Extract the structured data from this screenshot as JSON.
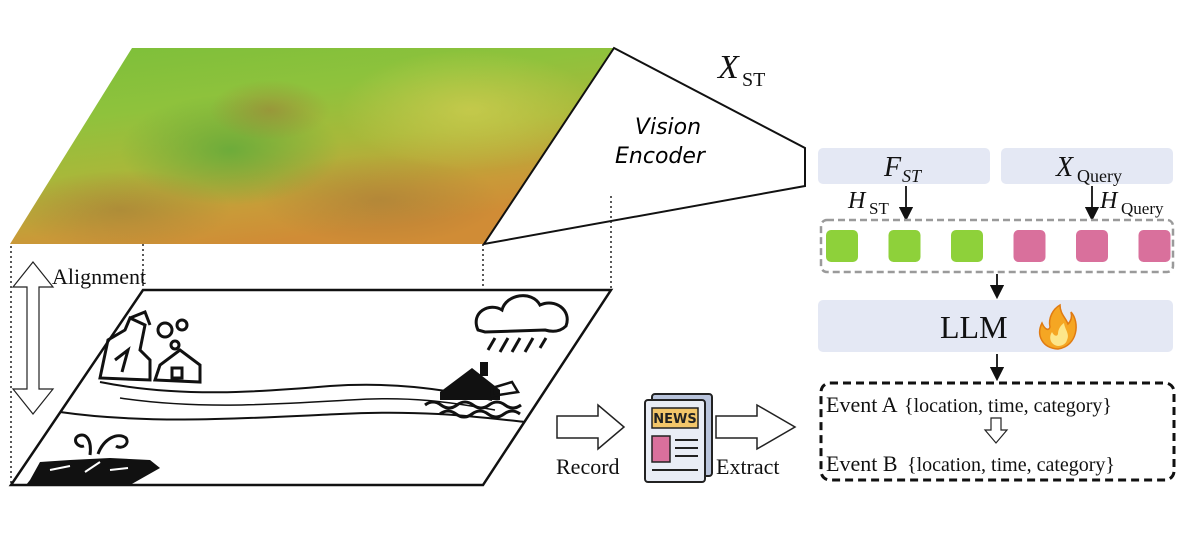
{
  "labels": {
    "x_st": "X",
    "x_st_sub": "ST",
    "vision_encoder_line1": "Vision",
    "vision_encoder_line2": "Encoder",
    "alignment": "Alignment",
    "f_st": "F",
    "f_st_sub": "ST",
    "x_query": "X",
    "x_query_sub": "Query",
    "h_st": "H",
    "h_st_sub": "ST",
    "h_query": "H",
    "h_query_sub": "Query",
    "llm": "LLM",
    "record": "Record",
    "extract": "Extract",
    "news": "NEWS",
    "event_a_name": "Event A",
    "event_a_fields": "{location, time, category}",
    "event_b_name": "Event B",
    "event_b_fields": "{location, time, category}"
  },
  "tokens": [
    {
      "type": "st",
      "color": "#8ed13a"
    },
    {
      "type": "st",
      "color": "#8ed13a"
    },
    {
      "type": "st",
      "color": "#8ed13a"
    },
    {
      "type": "query",
      "color": "#d9709c"
    },
    {
      "type": "query",
      "color": "#d9709c"
    },
    {
      "type": "query",
      "color": "#d9709c"
    }
  ],
  "colors": {
    "panel": "#e4e8f4",
    "flame": "#f5a623",
    "news_body": "#e9edf6"
  }
}
